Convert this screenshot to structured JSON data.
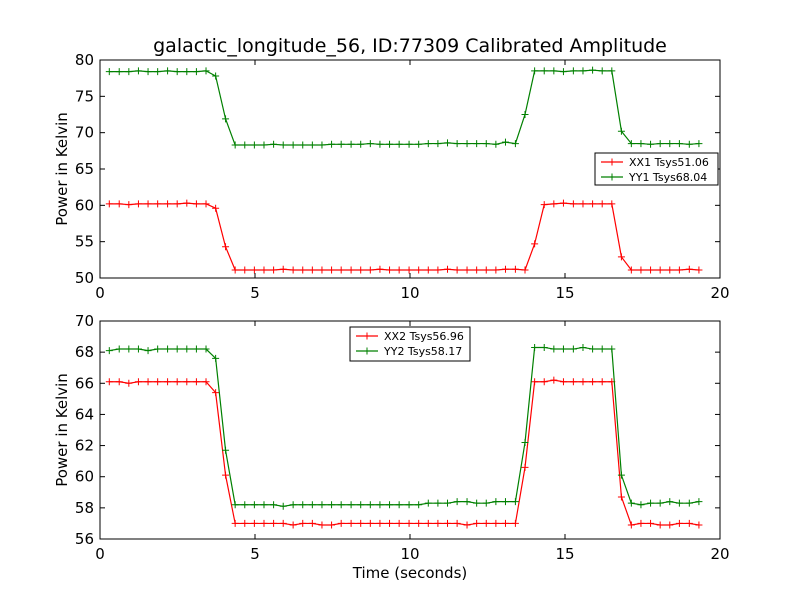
{
  "chart_data": [
    {
      "type": "line",
      "title": "galactic_longitude_56, ID:77309 Calibrated Amplitude",
      "xlabel": "",
      "ylabel": "Power in Kelvin",
      "xlim": [
        0,
        20
      ],
      "ylim": [
        50,
        80
      ],
      "xticks": [
        0,
        5,
        10,
        15,
        20
      ],
      "yticks": [
        50,
        55,
        60,
        65,
        70,
        75,
        80
      ],
      "grid": false,
      "legend_position": "center-right",
      "series": [
        {
          "name": "XX1 Tsys51.06",
          "color": "#ff0000",
          "x": [
            0.3,
            0.62,
            0.93,
            1.24,
            1.55,
            1.86,
            2.18,
            2.49,
            2.8,
            3.11,
            3.42,
            3.73,
            4.05,
            4.36,
            4.67,
            4.98,
            5.29,
            5.6,
            5.91,
            6.23,
            6.54,
            6.85,
            7.16,
            7.47,
            7.78,
            8.1,
            8.41,
            8.72,
            9.03,
            9.34,
            9.65,
            9.97,
            10.28,
            10.59,
            10.9,
            11.21,
            11.52,
            11.84,
            12.15,
            12.46,
            12.77,
            13.08,
            13.4,
            13.71,
            14.02,
            14.33,
            14.64,
            14.95,
            15.27,
            15.58,
            15.89,
            16.2,
            16.51,
            16.82,
            17.14,
            17.45,
            17.76,
            18.07,
            18.38,
            18.69,
            19.01,
            19.32
          ],
          "values": [
            60.2,
            60.2,
            60.1,
            60.2,
            60.2,
            60.2,
            60.2,
            60.2,
            60.3,
            60.2,
            60.2,
            59.6,
            54.3,
            51.1,
            51.1,
            51.1,
            51.1,
            51.1,
            51.2,
            51.1,
            51.1,
            51.1,
            51.1,
            51.1,
            51.1,
            51.1,
            51.1,
            51.1,
            51.2,
            51.1,
            51.1,
            51.1,
            51.1,
            51.1,
            51.1,
            51.2,
            51.1,
            51.1,
            51.1,
            51.1,
            51.1,
            51.2,
            51.2,
            51.1,
            54.7,
            60.1,
            60.2,
            60.3,
            60.2,
            60.2,
            60.2,
            60.2,
            60.2,
            52.9,
            51.1,
            51.1,
            51.1,
            51.1,
            51.1,
            51.1,
            51.2,
            51.1
          ]
        },
        {
          "name": "YY1 Tsys68.04",
          "color": "#008000",
          "x": [
            0.3,
            0.62,
            0.93,
            1.24,
            1.55,
            1.86,
            2.18,
            2.49,
            2.8,
            3.11,
            3.42,
            3.73,
            4.05,
            4.36,
            4.67,
            4.98,
            5.29,
            5.6,
            5.91,
            6.23,
            6.54,
            6.85,
            7.16,
            7.47,
            7.78,
            8.1,
            8.41,
            8.72,
            9.03,
            9.34,
            9.65,
            9.97,
            10.28,
            10.59,
            10.9,
            11.21,
            11.52,
            11.84,
            12.15,
            12.46,
            12.77,
            13.08,
            13.4,
            13.71,
            14.02,
            14.33,
            14.64,
            14.95,
            15.27,
            15.58,
            15.89,
            16.2,
            16.51,
            16.82,
            17.14,
            17.45,
            17.76,
            18.07,
            18.38,
            18.69,
            19.01,
            19.32
          ],
          "values": [
            78.4,
            78.4,
            78.4,
            78.5,
            78.4,
            78.4,
            78.5,
            78.4,
            78.4,
            78.4,
            78.5,
            77.8,
            71.9,
            68.3,
            68.3,
            68.3,
            68.3,
            68.4,
            68.3,
            68.3,
            68.3,
            68.3,
            68.3,
            68.4,
            68.4,
            68.4,
            68.4,
            68.5,
            68.4,
            68.4,
            68.4,
            68.4,
            68.4,
            68.5,
            68.5,
            68.6,
            68.5,
            68.5,
            68.5,
            68.5,
            68.4,
            68.7,
            68.5,
            72.5,
            78.5,
            78.5,
            78.5,
            78.4,
            78.5,
            78.5,
            78.6,
            78.5,
            78.5,
            70.2,
            68.5,
            68.5,
            68.4,
            68.5,
            68.5,
            68.5,
            68.4,
            68.5
          ]
        }
      ]
    },
    {
      "type": "line",
      "title": "",
      "xlabel": "Time (seconds)",
      "ylabel": "Power in Kelvin",
      "xlim": [
        0,
        20
      ],
      "ylim": [
        56,
        70
      ],
      "xticks": [
        0,
        5,
        10,
        15,
        20
      ],
      "yticks": [
        56,
        58,
        60,
        62,
        64,
        66,
        68,
        70
      ],
      "grid": false,
      "legend_position": "top-center",
      "series": [
        {
          "name": "XX2 Tsys56.96",
          "color": "#ff0000",
          "x": [
            0.3,
            0.62,
            0.93,
            1.24,
            1.55,
            1.86,
            2.18,
            2.49,
            2.8,
            3.11,
            3.42,
            3.73,
            4.05,
            4.36,
            4.67,
            4.98,
            5.29,
            5.6,
            5.91,
            6.23,
            6.54,
            6.85,
            7.16,
            7.47,
            7.78,
            8.1,
            8.41,
            8.72,
            9.03,
            9.34,
            9.65,
            9.97,
            10.28,
            10.59,
            10.9,
            11.21,
            11.52,
            11.84,
            12.15,
            12.46,
            12.77,
            13.08,
            13.4,
            13.71,
            14.02,
            14.33,
            14.64,
            14.95,
            15.27,
            15.58,
            15.89,
            16.2,
            16.51,
            16.82,
            17.14,
            17.45,
            17.76,
            18.07,
            18.38,
            18.69,
            19.01,
            19.32
          ],
          "values": [
            66.1,
            66.1,
            66.0,
            66.1,
            66.1,
            66.1,
            66.1,
            66.1,
            66.1,
            66.1,
            66.1,
            65.4,
            60.1,
            57.0,
            57.0,
            57.0,
            57.0,
            57.0,
            57.0,
            56.9,
            57.0,
            57.0,
            56.9,
            56.9,
            57.0,
            57.0,
            57.0,
            57.0,
            57.0,
            57.0,
            57.0,
            57.0,
            57.0,
            57.0,
            57.0,
            57.0,
            57.0,
            56.9,
            57.0,
            57.0,
            57.0,
            57.0,
            57.0,
            60.6,
            66.1,
            66.1,
            66.2,
            66.1,
            66.1,
            66.1,
            66.1,
            66.1,
            66.1,
            58.7,
            56.9,
            57.0,
            57.0,
            56.9,
            56.9,
            57.0,
            57.0,
            56.9
          ]
        },
        {
          "name": "YY2 Tsys58.17",
          "color": "#008000",
          "x": [
            0.3,
            0.62,
            0.93,
            1.24,
            1.55,
            1.86,
            2.18,
            2.49,
            2.8,
            3.11,
            3.42,
            3.73,
            4.05,
            4.36,
            4.67,
            4.98,
            5.29,
            5.6,
            5.91,
            6.23,
            6.54,
            6.85,
            7.16,
            7.47,
            7.78,
            8.1,
            8.41,
            8.72,
            9.03,
            9.34,
            9.65,
            9.97,
            10.28,
            10.59,
            10.9,
            11.21,
            11.52,
            11.84,
            12.15,
            12.46,
            12.77,
            13.08,
            13.4,
            13.71,
            14.02,
            14.33,
            14.64,
            14.95,
            15.27,
            15.58,
            15.89,
            16.2,
            16.51,
            16.82,
            17.14,
            17.45,
            17.76,
            18.07,
            18.38,
            18.69,
            19.01,
            19.32
          ],
          "values": [
            68.1,
            68.2,
            68.2,
            68.2,
            68.1,
            68.2,
            68.2,
            68.2,
            68.2,
            68.2,
            68.2,
            67.6,
            61.7,
            58.2,
            58.2,
            58.2,
            58.2,
            58.2,
            58.1,
            58.2,
            58.2,
            58.2,
            58.2,
            58.2,
            58.2,
            58.2,
            58.2,
            58.2,
            58.2,
            58.2,
            58.2,
            58.2,
            58.2,
            58.3,
            58.3,
            58.3,
            58.4,
            58.4,
            58.3,
            58.3,
            58.4,
            58.4,
            58.4,
            62.2,
            68.3,
            68.3,
            68.2,
            68.2,
            68.2,
            68.3,
            68.2,
            68.2,
            68.2,
            60.1,
            58.3,
            58.2,
            58.3,
            58.3,
            58.4,
            58.3,
            58.3,
            58.4
          ]
        }
      ]
    }
  ]
}
